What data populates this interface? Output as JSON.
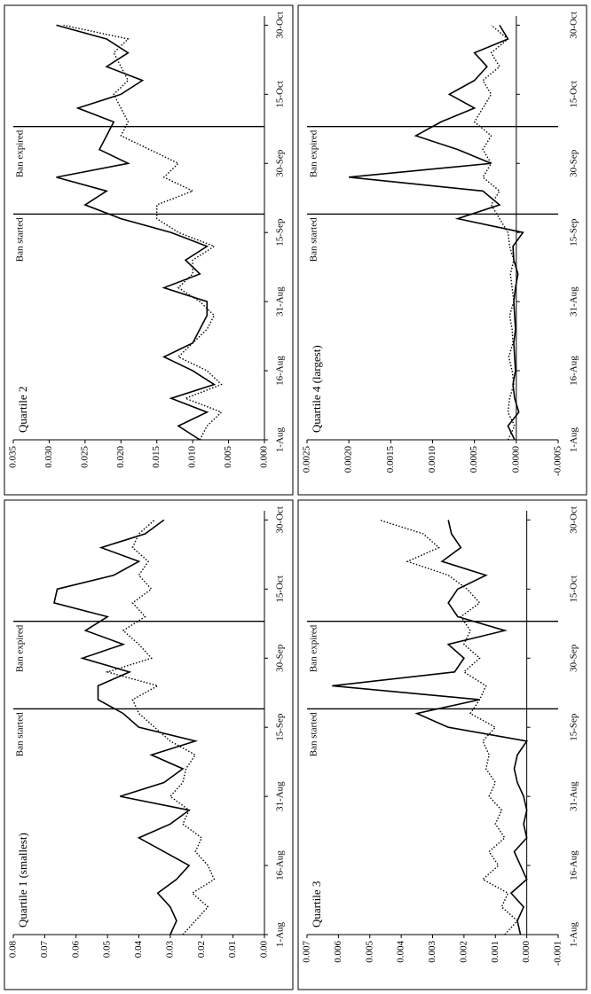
{
  "chart_data": [
    {
      "type": "line",
      "title": "Quartile 1 (smallest)",
      "x": [
        0,
        3,
        6,
        9,
        12,
        15,
        18,
        21,
        24,
        27,
        30,
        33,
        36,
        39,
        42,
        45,
        48,
        51,
        54,
        57,
        60,
        63,
        66,
        69,
        72,
        75,
        78,
        81,
        84,
        87,
        90
      ],
      "series": [
        {
          "style": "solid",
          "color": "#000000",
          "values": [
            0.03,
            0.028,
            0.03,
            0.034,
            0.028,
            0.024,
            0.032,
            0.04,
            0.03,
            0.024,
            0.046,
            0.032,
            0.026,
            0.036,
            0.022,
            0.04,
            0.045,
            0.053,
            0.053,
            0.043,
            0.058,
            0.045,
            0.057,
            0.05,
            0.067,
            0.066,
            0.048,
            0.04,
            0.052,
            0.038,
            0.032
          ]
        },
        {
          "style": "dotted",
          "color": "#000000",
          "values": [
            0.026,
            0.022,
            0.018,
            0.023,
            0.016,
            0.018,
            0.022,
            0.02,
            0.026,
            0.024,
            0.03,
            0.026,
            0.025,
            0.022,
            0.03,
            0.035,
            0.04,
            0.042,
            0.034,
            0.05,
            0.036,
            0.04,
            0.045,
            0.038,
            0.042,
            0.036,
            0.04,
            0.037,
            0.042,
            0.04,
            0.035
          ]
        }
      ],
      "xlim": [
        0,
        92
      ],
      "xticks": [
        {
          "value": 0,
          "label": "1-Aug"
        },
        {
          "value": 15,
          "label": "16-Aug"
        },
        {
          "value": 30,
          "label": "31-Aug"
        },
        {
          "value": 45,
          "label": "15-Sep"
        },
        {
          "value": 60,
          "label": "30-Sep"
        },
        {
          "value": 75,
          "label": "15-Oct"
        },
        {
          "value": 90,
          "label": "30-Oct"
        }
      ],
      "ylim": [
        0,
        0.08
      ],
      "yticks": [
        {
          "value": 0,
          "label": "0.00"
        },
        {
          "value": 0.01,
          "label": "0.01"
        },
        {
          "value": 0.02,
          "label": "0.02"
        },
        {
          "value": 0.03,
          "label": "0.03"
        },
        {
          "value": 0.04,
          "label": "0.04"
        },
        {
          "value": 0.05,
          "label": "0.05"
        },
        {
          "value": 0.06,
          "label": "0.06"
        },
        {
          "value": 0.07,
          "label": "0.07"
        },
        {
          "value": 0.08,
          "label": "0.08"
        }
      ],
      "annotations": [
        {
          "text": "Ban started",
          "x": 49
        },
        {
          "text": "Ban expired",
          "x": 68
        }
      ]
    },
    {
      "type": "line",
      "title": "Quartile 2",
      "x": [
        0,
        3,
        6,
        9,
        12,
        15,
        18,
        21,
        24,
        27,
        30,
        33,
        36,
        39,
        42,
        45,
        48,
        51,
        54,
        57,
        60,
        63,
        66,
        69,
        72,
        75,
        78,
        81,
        84,
        87,
        90
      ],
      "series": [
        {
          "style": "solid",
          "color": "#000000",
          "values": [
            0.009,
            0.012,
            0.008,
            0.013,
            0.007,
            0.01,
            0.014,
            0.01,
            0.009,
            0.008,
            0.008,
            0.014,
            0.009,
            0.011,
            0.008,
            0.013,
            0.02,
            0.025,
            0.022,
            0.029,
            0.019,
            0.023,
            0.022,
            0.021,
            0.026,
            0.02,
            0.017,
            0.022,
            0.019,
            0.022,
            0.029
          ]
        },
        {
          "style": "dotted",
          "color": "#000000",
          "values": [
            0.009,
            0.008,
            0.006,
            0.011,
            0.006,
            0.008,
            0.012,
            0.01,
            0.008,
            0.007,
            0.009,
            0.012,
            0.01,
            0.01,
            0.007,
            0.012,
            0.015,
            0.015,
            0.01,
            0.014,
            0.012,
            0.016,
            0.02,
            0.019,
            0.02,
            0.021,
            0.019,
            0.02,
            0.021,
            0.019,
            0.028
          ]
        }
      ],
      "xlim": [
        0,
        92
      ],
      "xticks": [
        {
          "value": 0,
          "label": "1-Aug"
        },
        {
          "value": 15,
          "label": "16-Aug"
        },
        {
          "value": 30,
          "label": "31-Aug"
        },
        {
          "value": 45,
          "label": "15-Sep"
        },
        {
          "value": 60,
          "label": "30-Sep"
        },
        {
          "value": 75,
          "label": "15-Oct"
        },
        {
          "value": 90,
          "label": "30-Oct"
        }
      ],
      "ylim": [
        0,
        0.035
      ],
      "yticks": [
        {
          "value": 0,
          "label": "0.000"
        },
        {
          "value": 0.005,
          "label": "0.005"
        },
        {
          "value": 0.01,
          "label": "0.010"
        },
        {
          "value": 0.015,
          "label": "0.015"
        },
        {
          "value": 0.02,
          "label": "0.020"
        },
        {
          "value": 0.025,
          "label": "0.025"
        },
        {
          "value": 0.03,
          "label": "0.030"
        },
        {
          "value": 0.035,
          "label": "0.035"
        }
      ],
      "annotations": [
        {
          "text": "Ban started",
          "x": 49
        },
        {
          "text": "Ban expired",
          "x": 68
        }
      ]
    },
    {
      "type": "line",
      "title": "Quartile 3",
      "x": [
        0,
        3,
        6,
        9,
        12,
        15,
        18,
        21,
        24,
        27,
        30,
        33,
        36,
        39,
        42,
        45,
        48,
        51,
        54,
        57,
        60,
        63,
        66,
        69,
        72,
        75,
        78,
        81,
        84,
        87,
        90
      ],
      "series": [
        {
          "style": "solid",
          "color": "#000000",
          "values": [
            0.0002,
            0.0003,
            0.0001,
            0.0005,
            0,
            0.0002,
            0.0004,
            0,
            0.0001,
            0,
            0.0001,
            0.0003,
            0.0004,
            0.0003,
            0,
            0.0025,
            0.0035,
            0.0015,
            0.0062,
            0.0023,
            0.002,
            0.0025,
            0.0007,
            0.0022,
            0.0025,
            0.0022,
            0.0013,
            0.0027,
            0.0021,
            0.0024,
            0.0025
          ]
        },
        {
          "style": "dotted",
          "color": "#000000",
          "values": [
            0.0007,
            0.0003,
            0.0008,
            0.0006,
            0.0014,
            0.0009,
            0.0012,
            0.0007,
            0.001,
            0.0008,
            0.0012,
            0.001,
            0.0013,
            0.0012,
            0.0014,
            0.001,
            0.0018,
            0.0015,
            0.0013,
            0.002,
            0.0015,
            0.002,
            0.0018,
            0.0021,
            0.0015,
            0.0019,
            0.0025,
            0.0038,
            0.0028,
            0.0033,
            0.0047
          ]
        }
      ],
      "xlim": [
        0,
        92
      ],
      "xticks": [
        {
          "value": 0,
          "label": "1-Aug"
        },
        {
          "value": 15,
          "label": "16-Aug"
        },
        {
          "value": 30,
          "label": "31-Aug"
        },
        {
          "value": 45,
          "label": "15-Sep"
        },
        {
          "value": 60,
          "label": "30-Sep"
        },
        {
          "value": 75,
          "label": "15-Oct"
        },
        {
          "value": 90,
          "label": "30-Oct"
        }
      ],
      "ylim": [
        -0.001,
        0.007
      ],
      "yticks": [
        {
          "value": -0.001,
          "label": "-0.001"
        },
        {
          "value": 0,
          "label": "0.000"
        },
        {
          "value": 0.001,
          "label": "0.001"
        },
        {
          "value": 0.002,
          "label": "0.002"
        },
        {
          "value": 0.003,
          "label": "0.003"
        },
        {
          "value": 0.004,
          "label": "0.004"
        },
        {
          "value": 0.005,
          "label": "0.005"
        },
        {
          "value": 0.006,
          "label": "0.006"
        },
        {
          "value": 0.007,
          "label": "0.007"
        }
      ],
      "annotations": [
        {
          "text": "Ban started",
          "x": 49
        },
        {
          "text": "Ban expired",
          "x": 68
        }
      ]
    },
    {
      "type": "line",
      "title": "Quartile 4 (largest)",
      "x": [
        0,
        3,
        6,
        9,
        12,
        15,
        18,
        21,
        24,
        27,
        30,
        33,
        36,
        39,
        42,
        45,
        48,
        51,
        54,
        57,
        60,
        63,
        66,
        69,
        72,
        75,
        78,
        81,
        84,
        87,
        90
      ],
      "series": [
        {
          "style": "solid",
          "color": "#000000",
          "values": [
            2e-05,
            0.0001,
            -3e-05,
            2e-05,
            4e-05,
            1e-05,
            2e-05,
            3e-05,
            1e-05,
            2e-05,
            3e-05,
            1e-05,
            -2e-05,
            3e-05,
            4e-05,
            -8e-05,
            0.0007,
            0.0002,
            0.0004,
            0.002,
            0.0003,
            0.0007,
            0.0012,
            0.0009,
            0.0005,
            0.0008,
            0.0005,
            0.00035,
            0.0005,
            0.0001,
            0.0002
          ]
        },
        {
          "style": "dotted",
          "color": "#000000",
          "values": [
            0.0001,
            2e-05,
            0.0001,
            8e-05,
            3e-05,
            5e-05,
            9e-05,
            4e-05,
            5e-05,
            8e-05,
            3e-05,
            5e-05,
            7e-05,
            3e-05,
            8e-05,
            0.0001,
            0.0002,
            0.0003,
            0.0002,
            0.0004,
            0.0003,
            0.0004,
            0.0003,
            0.0005,
            0.0004,
            0.0003,
            0.0004,
            0.0002,
            0.0003,
            0.0001,
            0.0003
          ]
        }
      ],
      "xlim": [
        0,
        92
      ],
      "xticks": [
        {
          "value": 0,
          "label": "1-Aug"
        },
        {
          "value": 15,
          "label": "16-Aug"
        },
        {
          "value": 30,
          "label": "31-Aug"
        },
        {
          "value": 45,
          "label": "15-Sep"
        },
        {
          "value": 60,
          "label": "30-Sep"
        },
        {
          "value": 75,
          "label": "15-Oct"
        },
        {
          "value": 90,
          "label": "30-Oct"
        }
      ],
      "ylim": [
        -0.0005,
        0.0025
      ],
      "yticks": [
        {
          "value": -0.0005,
          "label": "-0.0005"
        },
        {
          "value": 0,
          "label": "0.0000"
        },
        {
          "value": 0.0005,
          "label": "0.0005"
        },
        {
          "value": 0.001,
          "label": "0.0010"
        },
        {
          "value": 0.0015,
          "label": "0.0015"
        },
        {
          "value": 0.002,
          "label": "0.0020"
        },
        {
          "value": 0.0025,
          "label": "0.0025"
        }
      ],
      "annotations": [
        {
          "text": "Ban started",
          "x": 49
        },
        {
          "text": "Ban expired",
          "x": 68
        }
      ]
    }
  ]
}
